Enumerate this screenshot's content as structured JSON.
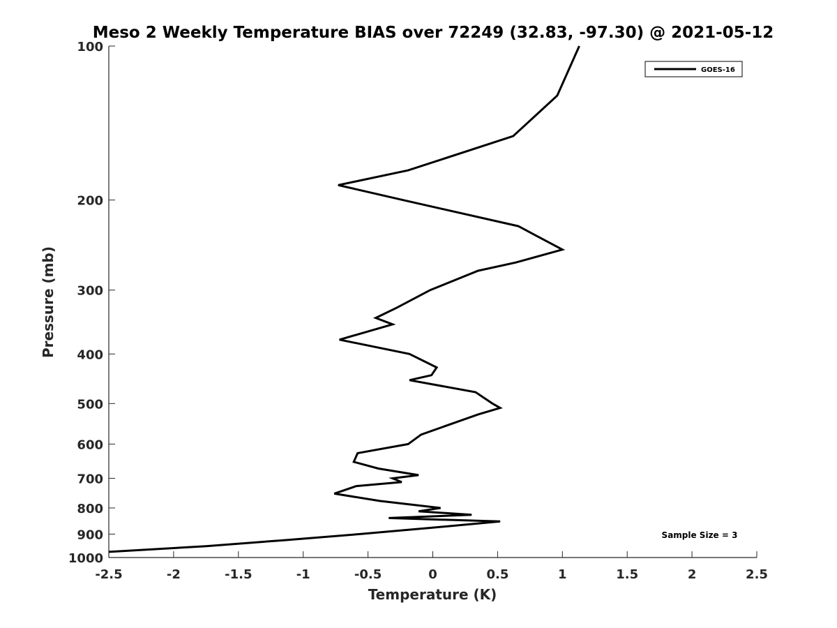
{
  "chart_data": {
    "type": "line",
    "title": "Meso 2 Weekly Temperature BIAS over 72249 (32.83, -97.30) @ 2021-05-12",
    "xlabel": "Temperature (K)",
    "ylabel": "Pressure (mb)",
    "xlim": [
      -2.5,
      2.5
    ],
    "ylim": [
      1000,
      100
    ],
    "yscale": "log",
    "y_reversed": true,
    "x_ticks": [
      -2.5,
      -2,
      -1.5,
      -1,
      -0.5,
      0,
      0.5,
      1,
      1.5,
      2,
      2.5
    ],
    "x_tick_labels": [
      "-2.5",
      "-2",
      "-1.5",
      "-1",
      "-0.5",
      "0",
      "0.5",
      "1",
      "1.5",
      "2",
      "2.5"
    ],
    "y_ticks": [
      100,
      200,
      300,
      400,
      500,
      600,
      700,
      800,
      900,
      1000
    ],
    "y_tick_labels": [
      "100",
      "200",
      "300",
      "400",
      "500",
      "600",
      "700",
      "800",
      "900",
      "1000"
    ],
    "grid": false,
    "legend_position": "top-right",
    "annotation": "Sample Size = 3",
    "series": [
      {
        "name": "GOES-16",
        "color": "#000000",
        "points": [
          {
            "x": 1.13,
            "p": 100
          },
          {
            "x": 0.96,
            "p": 125
          },
          {
            "x": 0.62,
            "p": 150
          },
          {
            "x": -0.19,
            "p": 175
          },
          {
            "x": -0.73,
            "p": 187
          },
          {
            "x": -0.23,
            "p": 200
          },
          {
            "x": 0.66,
            "p": 225
          },
          {
            "x": 1.0,
            "p": 250
          },
          {
            "x": 0.64,
            "p": 265
          },
          {
            "x": 0.35,
            "p": 275
          },
          {
            "x": -0.02,
            "p": 300
          },
          {
            "x": -0.28,
            "p": 325
          },
          {
            "x": -0.44,
            "p": 340
          },
          {
            "x": -0.31,
            "p": 350
          },
          {
            "x": -0.72,
            "p": 375
          },
          {
            "x": -0.18,
            "p": 400
          },
          {
            "x": 0.03,
            "p": 425
          },
          {
            "x": -0.01,
            "p": 440
          },
          {
            "x": -0.18,
            "p": 450
          },
          {
            "x": 0.33,
            "p": 475
          },
          {
            "x": 0.46,
            "p": 500
          },
          {
            "x": 0.52,
            "p": 510
          },
          {
            "x": 0.35,
            "p": 525
          },
          {
            "x": -0.09,
            "p": 575
          },
          {
            "x": -0.19,
            "p": 600
          },
          {
            "x": -0.58,
            "p": 625
          },
          {
            "x": -0.61,
            "p": 650
          },
          {
            "x": -0.42,
            "p": 670
          },
          {
            "x": -0.11,
            "p": 690
          },
          {
            "x": -0.31,
            "p": 700
          },
          {
            "x": -0.24,
            "p": 712
          },
          {
            "x": -0.59,
            "p": 725
          },
          {
            "x": -0.76,
            "p": 750
          },
          {
            "x": -0.41,
            "p": 775
          },
          {
            "x": 0.06,
            "p": 800
          },
          {
            "x": -0.11,
            "p": 812
          },
          {
            "x": 0.3,
            "p": 825
          },
          {
            "x": -0.34,
            "p": 837
          },
          {
            "x": 0.52,
            "p": 850
          },
          {
            "x": -0.02,
            "p": 875
          },
          {
            "x": -0.57,
            "p": 900
          },
          {
            "x": -1.15,
            "p": 925
          },
          {
            "x": -1.75,
            "p": 950
          },
          {
            "x": -2.5,
            "p": 975
          }
        ]
      }
    ]
  }
}
